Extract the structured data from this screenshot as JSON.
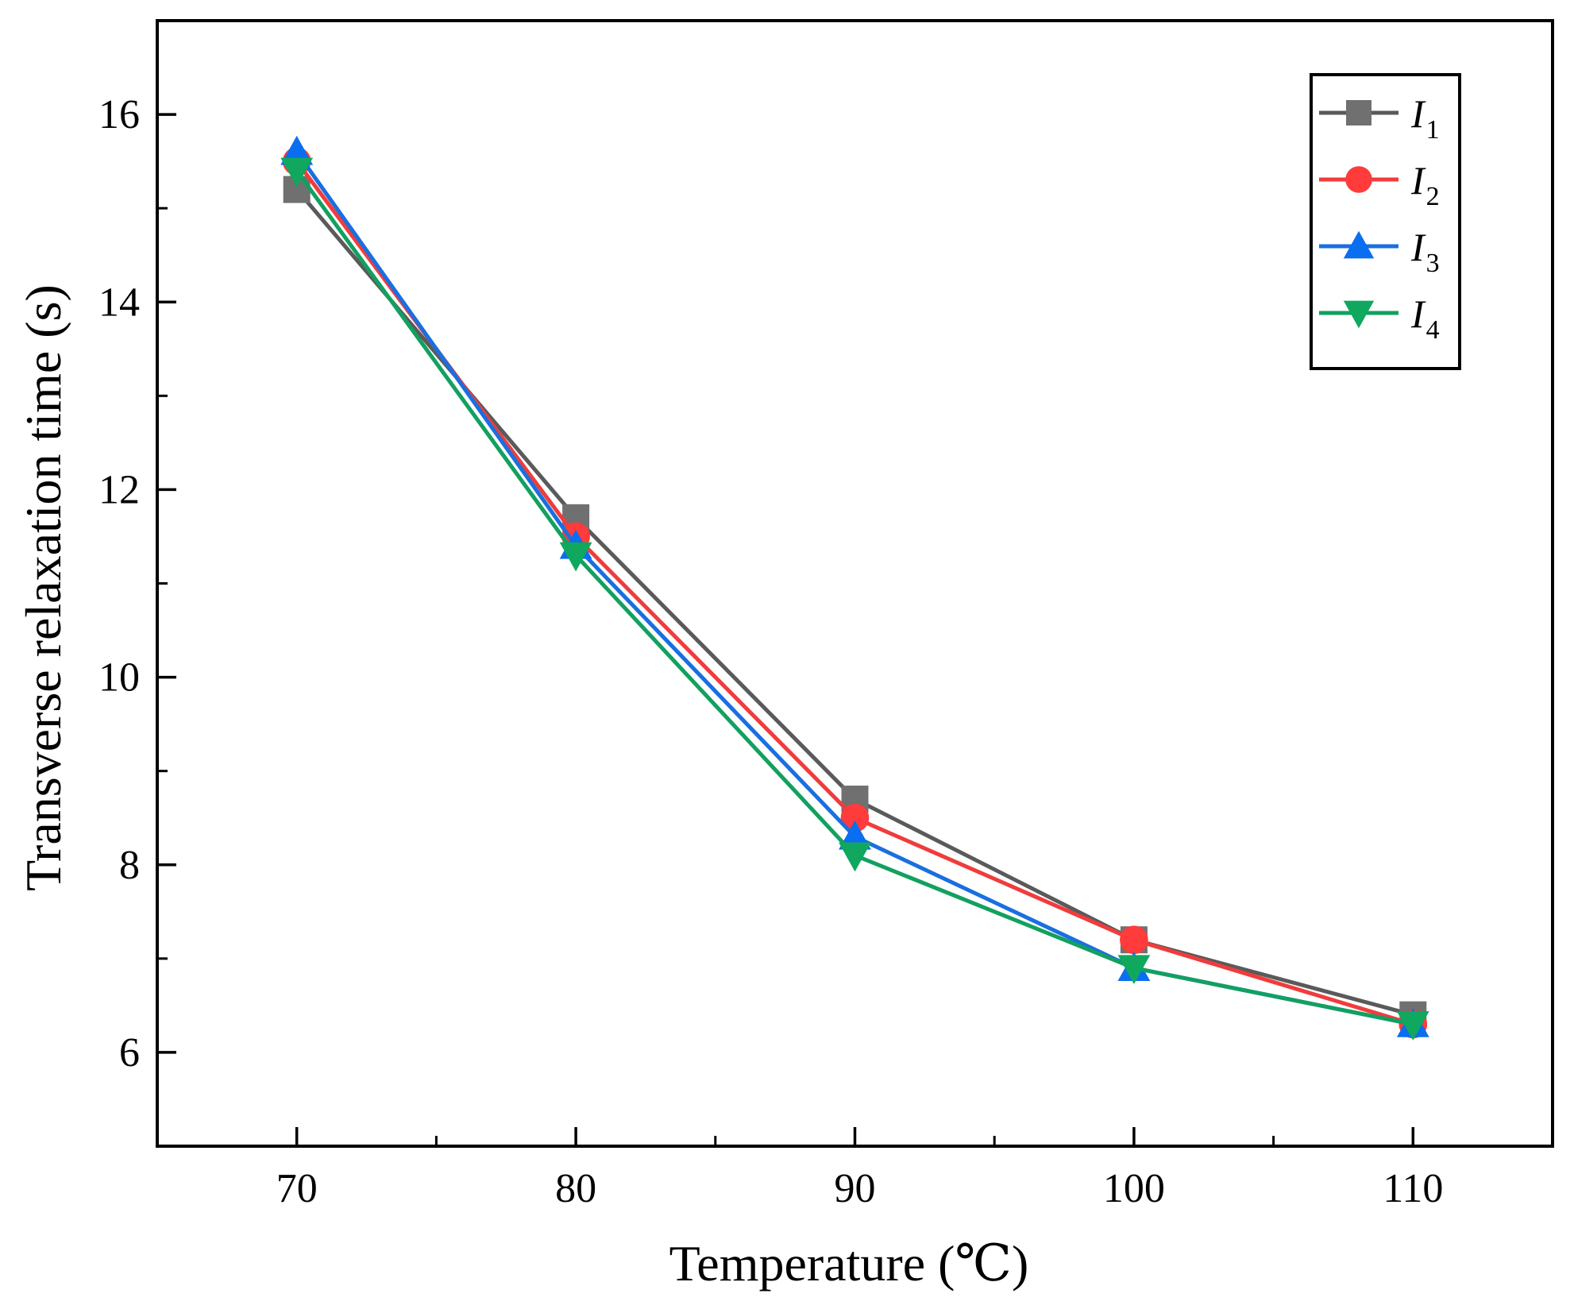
{
  "chart_data": {
    "type": "line",
    "title": "",
    "xlabel": "Temperature (℃)",
    "ylabel": "Transverse relaxation time (s)",
    "x": [
      70,
      80,
      90,
      100,
      110
    ],
    "xlim": [
      65,
      115
    ],
    "ylim": [
      5,
      17
    ],
    "xticks": [
      70,
      80,
      90,
      100,
      110
    ],
    "xtick_labels": [
      "70",
      "80",
      "90",
      "100",
      "110"
    ],
    "yticks": [
      6,
      8,
      10,
      12,
      14,
      16
    ],
    "ytick_labels": [
      "6",
      "8",
      "10",
      "12",
      "14",
      "16"
    ],
    "grid": false,
    "legend_position": "top-right",
    "series": [
      {
        "name": "I",
        "subscript": "1",
        "marker": "square",
        "color": "#5a5a5a",
        "marker_color": "#707070",
        "values": [
          15.2,
          11.7,
          8.7,
          7.2,
          6.4
        ]
      },
      {
        "name": "I",
        "subscript": "2",
        "marker": "circle",
        "color": "#f03c3c",
        "marker_color": "#ff3b3b",
        "values": [
          15.5,
          11.5,
          8.5,
          7.2,
          6.3
        ]
      },
      {
        "name": "I",
        "subscript": "3",
        "marker": "triangle-up",
        "color": "#1a6fe0",
        "marker_color": "#0a6ef0",
        "values": [
          15.6,
          11.4,
          8.3,
          6.9,
          6.3
        ]
      },
      {
        "name": "I",
        "subscript": "4",
        "marker": "triangle-down",
        "color": "#12a060",
        "marker_color": "#0fa85e",
        "values": [
          15.4,
          11.3,
          8.1,
          6.9,
          6.3
        ]
      }
    ]
  }
}
